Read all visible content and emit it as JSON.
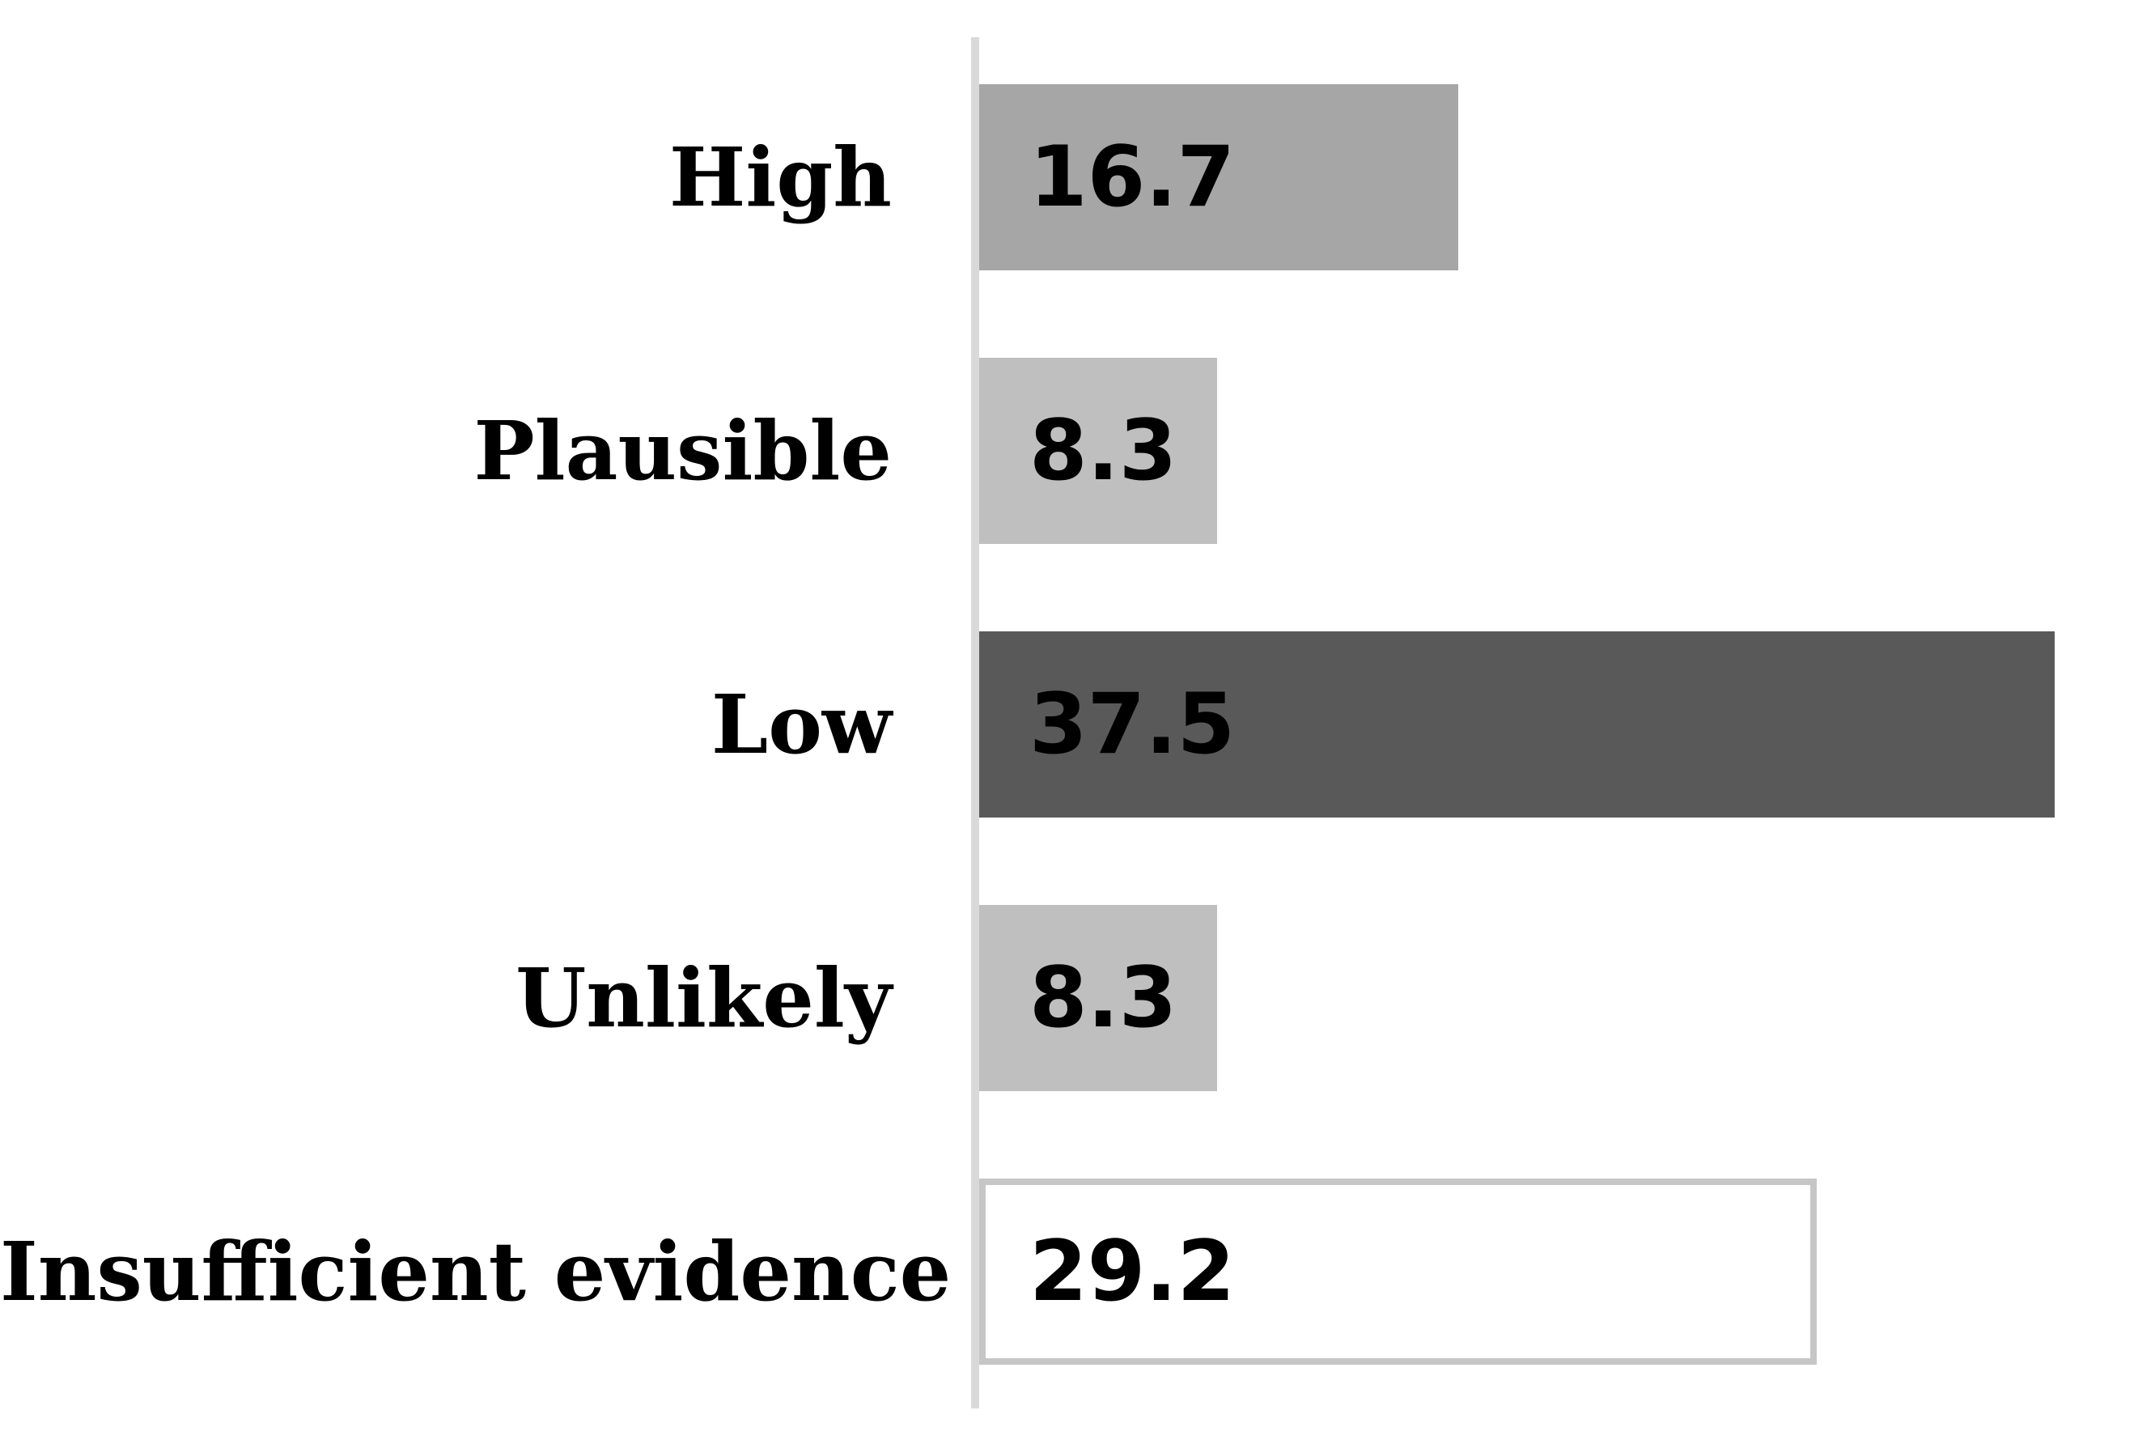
{
  "chart_data": {
    "type": "bar",
    "orientation": "horizontal",
    "title": "",
    "xlabel": "",
    "ylabel": "",
    "categories": [
      "High",
      "Plausible",
      "Low",
      "Unlikely",
      "Insufficient evidence"
    ],
    "values": [
      16.7,
      8.3,
      37.5,
      8.3,
      29.2
    ],
    "value_labels": [
      "16.7",
      "8.3",
      "37.5",
      "8.3",
      "29.2"
    ],
    "xlim": [
      0,
      41
    ],
    "grid": false,
    "legend": false,
    "value_labels_position": "inside-start",
    "colors": {
      "bar_fills": [
        "#A6A6A6",
        "#BFBFBF",
        "#595959",
        "#BFBFBF",
        "#FFFFFF"
      ],
      "bar_borders": [
        "",
        "",
        "",
        "",
        "#C6C6C6"
      ],
      "axis_line": "#D9D9D9",
      "category_text": "#000000",
      "value_text": "#000000",
      "background": "#FFFFFF"
    }
  }
}
